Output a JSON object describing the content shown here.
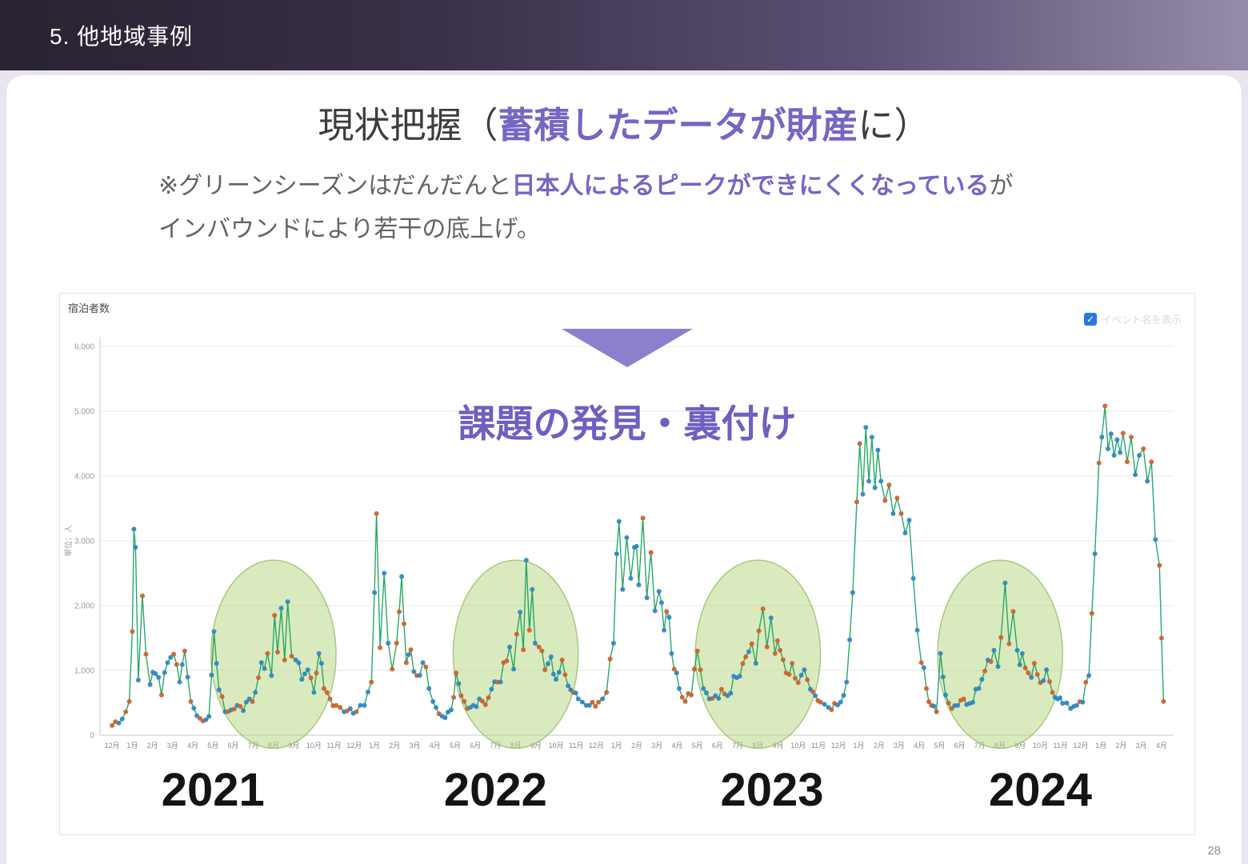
{
  "slide": {
    "section_header": "5. 他地域事例",
    "page_number": "28",
    "title": {
      "prefix": "現状把握（",
      "highlight": "蓄積したデータが財産",
      "suffix": "に）"
    },
    "note": {
      "prefix": "※グリーンシーズンはだんだんと",
      "highlight": "日本人によるピークができにくくなっている",
      "suffix": "が",
      "line2": "インバウンドにより若干の底上げ。"
    },
    "callout": {
      "text": "課題の発見・裏付け"
    }
  },
  "chart_data": {
    "type": "line",
    "title": "宿泊者数",
    "ylabel": "単位：人",
    "legend_checkbox": {
      "label": "イベント名を表示",
      "checked": true,
      "glyph": "✓"
    },
    "ylim": [
      0,
      6000
    ],
    "yticks": [
      0,
      1000,
      2000,
      3000,
      4000,
      5000,
      6000
    ],
    "ytick_labels": [
      "0",
      "1,000",
      "2,000",
      "3,000",
      "4,000",
      "5,000",
      "6,000"
    ],
    "x_tick_labels": [
      "12月",
      "1月",
      "2月",
      "3月",
      "4月",
      "5月",
      "6月",
      "7月",
      "8月",
      "9月",
      "10月",
      "11月",
      "12月",
      "1月",
      "2月",
      "3月",
      "4月",
      "5月",
      "6月",
      "7月",
      "8月",
      "9月",
      "10月",
      "11月",
      "12月",
      "1月",
      "2月",
      "3月",
      "4月",
      "5月",
      "6月",
      "7月",
      "8月",
      "9月",
      "10月",
      "11月",
      "12月",
      "1月",
      "2月",
      "3月",
      "4月",
      "5月",
      "6月",
      "7月",
      "8月",
      "9月",
      "10月",
      "11月",
      "12月",
      "1月",
      "2月",
      "3月",
      "4月"
    ],
    "year_labels": [
      {
        "label": "2021",
        "t": 5.0
      },
      {
        "label": "2022",
        "t": 19.0
      },
      {
        "label": "2023",
        "t": 32.7
      },
      {
        "label": "2024",
        "t": 46.0
      }
    ],
    "highlight_ellipses": [
      {
        "t": 8,
        "v": 1250,
        "rt": 3.1,
        "rv": 1450
      },
      {
        "t": 20,
        "v": 1250,
        "rt": 3.1,
        "rv": 1450
      },
      {
        "t": 32,
        "v": 1250,
        "rt": 3.1,
        "rv": 1450
      },
      {
        "t": 44,
        "v": 1250,
        "rt": 3.1,
        "rv": 1450
      }
    ],
    "colors": {
      "line": "#1ca35f",
      "marker_blue": "#2f86c0",
      "marker_orange": "#d05f2a",
      "ellipse_fill": "#b5d680",
      "ellipse_stroke": "#8ab855",
      "grid": "#e7e7e7",
      "axis": "#c9c9c9",
      "accent_purple": "#7566c3"
    },
    "series": [
      {
        "name": "宿泊者数",
        "keypoints": [
          [
            0,
            150
          ],
          [
            0.5,
            250
          ],
          [
            0.85,
            520
          ],
          [
            1.0,
            1600
          ],
          [
            1.08,
            3180
          ],
          [
            1.16,
            2900
          ],
          [
            1.3,
            850
          ],
          [
            1.5,
            2150
          ],
          [
            1.68,
            1250
          ],
          [
            1.88,
            780
          ],
          [
            2.15,
            950
          ],
          [
            2.45,
            620
          ],
          [
            2.75,
            1120
          ],
          [
            3.05,
            1250
          ],
          [
            3.35,
            820
          ],
          [
            3.6,
            1300
          ],
          [
            3.9,
            520
          ],
          [
            4.2,
            300
          ],
          [
            4.5,
            220
          ],
          [
            4.8,
            290
          ],
          [
            5.05,
            1600
          ],
          [
            5.3,
            700
          ],
          [
            5.6,
            360
          ],
          [
            5.9,
            390
          ],
          [
            6.2,
            460
          ],
          [
            6.5,
            380
          ],
          [
            6.8,
            560
          ],
          [
            7.1,
            660
          ],
          [
            7.4,
            1120
          ],
          [
            7.7,
            1260
          ],
          [
            7.9,
            920
          ],
          [
            8.05,
            1850
          ],
          [
            8.2,
            1280
          ],
          [
            8.38,
            1960
          ],
          [
            8.55,
            1160
          ],
          [
            8.7,
            2060
          ],
          [
            8.9,
            1220
          ],
          [
            9.1,
            1160
          ],
          [
            9.4,
            860
          ],
          [
            9.7,
            1010
          ],
          [
            10.0,
            660
          ],
          [
            10.25,
            1260
          ],
          [
            10.5,
            720
          ],
          [
            10.8,
            560
          ],
          [
            11.1,
            460
          ],
          [
            11.5,
            360
          ],
          [
            11.8,
            410
          ],
          [
            12.1,
            360
          ],
          [
            12.5,
            460
          ],
          [
            12.85,
            820
          ],
          [
            13.0,
            2200
          ],
          [
            13.1,
            3420
          ],
          [
            13.28,
            1350
          ],
          [
            13.48,
            2500
          ],
          [
            13.68,
            1420
          ],
          [
            13.88,
            1020
          ],
          [
            14.1,
            1420
          ],
          [
            14.35,
            2450
          ],
          [
            14.58,
            1120
          ],
          [
            14.8,
            1320
          ],
          [
            15.1,
            920
          ],
          [
            15.4,
            1120
          ],
          [
            15.7,
            720
          ],
          [
            15.9,
            520
          ],
          [
            16.2,
            330
          ],
          [
            16.5,
            270
          ],
          [
            16.8,
            390
          ],
          [
            17.05,
            960
          ],
          [
            17.3,
            610
          ],
          [
            17.6,
            410
          ],
          [
            17.9,
            460
          ],
          [
            18.2,
            560
          ],
          [
            18.5,
            470
          ],
          [
            18.8,
            710
          ],
          [
            19.1,
            820
          ],
          [
            19.4,
            1120
          ],
          [
            19.7,
            1360
          ],
          [
            19.9,
            1020
          ],
          [
            20.05,
            1560
          ],
          [
            20.22,
            1900
          ],
          [
            20.38,
            1320
          ],
          [
            20.52,
            2700
          ],
          [
            20.68,
            1620
          ],
          [
            20.82,
            2250
          ],
          [
            20.96,
            1420
          ],
          [
            21.15,
            1360
          ],
          [
            21.45,
            1010
          ],
          [
            21.75,
            1210
          ],
          [
            22.0,
            860
          ],
          [
            22.3,
            1160
          ],
          [
            22.6,
            760
          ],
          [
            22.85,
            660
          ],
          [
            23.1,
            560
          ],
          [
            23.5,
            460
          ],
          [
            23.8,
            510
          ],
          [
            24.1,
            510
          ],
          [
            24.5,
            660
          ],
          [
            24.85,
            1420
          ],
          [
            25.0,
            2800
          ],
          [
            25.12,
            3300
          ],
          [
            25.3,
            2250
          ],
          [
            25.5,
            3050
          ],
          [
            25.7,
            2420
          ],
          [
            25.88,
            2900
          ],
          [
            26.1,
            2320
          ],
          [
            26.3,
            3350
          ],
          [
            26.5,
            2120
          ],
          [
            26.7,
            2820
          ],
          [
            26.9,
            1920
          ],
          [
            27.1,
            2220
          ],
          [
            27.35,
            1620
          ],
          [
            27.6,
            1820
          ],
          [
            27.85,
            1020
          ],
          [
            28.1,
            720
          ],
          [
            28.4,
            520
          ],
          [
            28.7,
            620
          ],
          [
            29.0,
            1300
          ],
          [
            29.3,
            720
          ],
          [
            29.6,
            560
          ],
          [
            29.9,
            610
          ],
          [
            30.2,
            710
          ],
          [
            30.5,
            610
          ],
          [
            30.8,
            910
          ],
          [
            31.1,
            910
          ],
          [
            31.4,
            1210
          ],
          [
            31.7,
            1410
          ],
          [
            31.9,
            1110
          ],
          [
            32.05,
            1610
          ],
          [
            32.25,
            1950
          ],
          [
            32.45,
            1360
          ],
          [
            32.65,
            1810
          ],
          [
            32.85,
            1260
          ],
          [
            33.1,
            1310
          ],
          [
            33.4,
            960
          ],
          [
            33.7,
            1110
          ],
          [
            34.0,
            810
          ],
          [
            34.3,
            1010
          ],
          [
            34.6,
            710
          ],
          [
            34.85,
            610
          ],
          [
            35.1,
            510
          ],
          [
            35.5,
            430
          ],
          [
            35.8,
            490
          ],
          [
            36.1,
            510
          ],
          [
            36.4,
            820
          ],
          [
            36.7,
            2200
          ],
          [
            36.9,
            3600
          ],
          [
            37.05,
            4500
          ],
          [
            37.2,
            3720
          ],
          [
            37.35,
            4750
          ],
          [
            37.5,
            3920
          ],
          [
            37.65,
            4600
          ],
          [
            37.8,
            3820
          ],
          [
            37.95,
            4400
          ],
          [
            38.1,
            3920
          ],
          [
            38.3,
            3620
          ],
          [
            38.5,
            3860
          ],
          [
            38.7,
            3420
          ],
          [
            38.9,
            3660
          ],
          [
            39.1,
            3420
          ],
          [
            39.3,
            3120
          ],
          [
            39.5,
            3320
          ],
          [
            39.7,
            2420
          ],
          [
            39.9,
            1620
          ],
          [
            40.1,
            1120
          ],
          [
            40.35,
            720
          ],
          [
            40.6,
            460
          ],
          [
            40.85,
            360
          ],
          [
            41.05,
            1260
          ],
          [
            41.3,
            620
          ],
          [
            41.6,
            410
          ],
          [
            41.9,
            460
          ],
          [
            42.2,
            560
          ],
          [
            42.5,
            490
          ],
          [
            42.8,
            710
          ],
          [
            43.1,
            860
          ],
          [
            43.4,
            1160
          ],
          [
            43.7,
            1310
          ],
          [
            43.9,
            1060
          ],
          [
            44.05,
            1510
          ],
          [
            44.25,
            2350
          ],
          [
            44.45,
            1410
          ],
          [
            44.65,
            1910
          ],
          [
            44.85,
            1310
          ],
          [
            45.1,
            1260
          ],
          [
            45.4,
            960
          ],
          [
            45.7,
            1110
          ],
          [
            46.0,
            810
          ],
          [
            46.3,
            1010
          ],
          [
            46.6,
            660
          ],
          [
            46.85,
            560
          ],
          [
            47.1,
            490
          ],
          [
            47.5,
            410
          ],
          [
            47.8,
            460
          ],
          [
            48.1,
            510
          ],
          [
            48.4,
            920
          ],
          [
            48.7,
            2800
          ],
          [
            48.9,
            4200
          ],
          [
            49.05,
            4600
          ],
          [
            49.2,
            5080
          ],
          [
            49.35,
            4420
          ],
          [
            49.5,
            4650
          ],
          [
            49.65,
            4320
          ],
          [
            49.8,
            4560
          ],
          [
            49.95,
            4360
          ],
          [
            50.1,
            4660
          ],
          [
            50.3,
            4220
          ],
          [
            50.5,
            4600
          ],
          [
            50.7,
            4020
          ],
          [
            50.9,
            4320
          ],
          [
            51.1,
            4420
          ],
          [
            51.3,
            3920
          ],
          [
            51.5,
            4220
          ],
          [
            51.7,
            3020
          ],
          [
            51.9,
            2620
          ],
          [
            52.0,
            1500
          ],
          [
            52.1,
            520
          ]
        ]
      }
    ]
  }
}
